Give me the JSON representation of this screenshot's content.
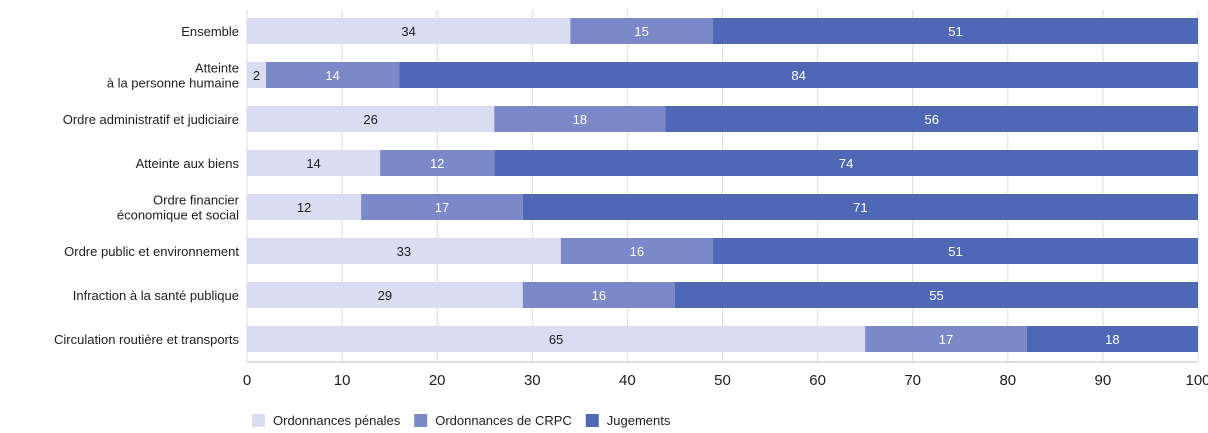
{
  "chart_data": {
    "type": "bar",
    "orientation": "horizontal",
    "stacked": true,
    "categories": [
      [
        "Ensemble"
      ],
      [
        "Atteinte",
        "à la personne humaine"
      ],
      [
        "Ordre administratif et judiciaire"
      ],
      [
        "Atteinte aux biens"
      ],
      [
        "Ordre financier",
        "économique et social"
      ],
      [
        "Ordre public et environnement"
      ],
      [
        "Infraction à la santé publique"
      ],
      [
        "Circulation routière et transports"
      ]
    ],
    "series": [
      {
        "name": "Ordonnances pénales",
        "color": "#dadcf1",
        "label_color": "#1e1e1e",
        "values": [
          34,
          2,
          26,
          14,
          12,
          33,
          29,
          65
        ]
      },
      {
        "name": "Ordonnances de CRPC",
        "color": "#7b89c8",
        "label_color": "#ffffff",
        "values": [
          15,
          14,
          18,
          12,
          17,
          16,
          16,
          17
        ]
      },
      {
        "name": "Jugements",
        "color": "#4f68b5",
        "label_color": "#ffffff",
        "values": [
          51,
          84,
          56,
          74,
          71,
          51,
          55,
          18
        ]
      }
    ],
    "xlim": [
      0,
      100
    ],
    "xticks": [
      "0",
      "10",
      "20",
      "30",
      "40",
      "50",
      "60",
      "70",
      "80",
      "90",
      "100"
    ],
    "grid": "vertical",
    "legend": "bottom-left",
    "title": "",
    "xlabel": "",
    "ylabel": ""
  }
}
